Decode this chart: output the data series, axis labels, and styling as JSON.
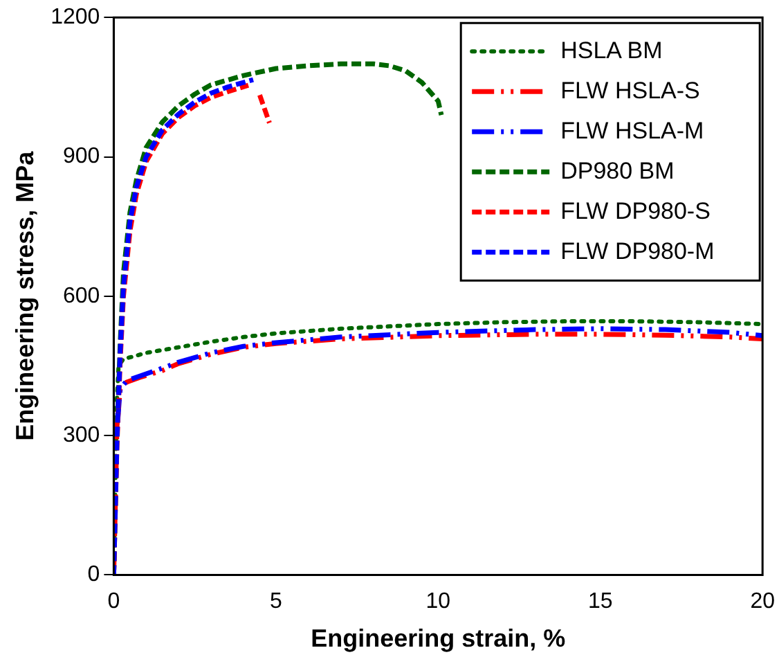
{
  "chart_data": {
    "type": "line",
    "xlabel": "Engineering strain, %",
    "ylabel": "Engineering stress, MPa",
    "xlim": [
      0,
      20
    ],
    "xticks": [
      0,
      5,
      10,
      15,
      20
    ],
    "ylim": [
      0,
      1200
    ],
    "yticks": [
      0,
      300,
      600,
      900,
      1200
    ],
    "grid": false,
    "legend": "top right",
    "marker": "none",
    "series": [
      {
        "name": "HSLA BM",
        "color": "#006600",
        "line_style": "dotted",
        "x": [
          0,
          0.05,
          0.1,
          0.15,
          0.3,
          0.6,
          1,
          2,
          3,
          4,
          5,
          7,
          10,
          12,
          14,
          16,
          18,
          20
        ],
        "values": [
          0,
          200,
          380,
          450,
          465,
          470,
          478,
          490,
          502,
          512,
          520,
          530,
          540,
          544,
          546,
          546,
          544,
          540
        ]
      },
      {
        "name": "FLW HSLA-S",
        "color": "#ff0000",
        "line_style": "dashdot",
        "x": [
          0,
          0.05,
          0.1,
          0.2,
          0.4,
          0.8,
          1.5,
          2,
          3,
          4,
          5,
          7,
          10,
          13,
          15,
          17,
          19,
          20
        ],
        "values": [
          0,
          150,
          320,
          400,
          415,
          425,
          440,
          455,
          475,
          490,
          498,
          508,
          515,
          518,
          518,
          516,
          512,
          508
        ]
      },
      {
        "name": "FLW HSLA-M",
        "color": "#0000ff",
        "line_style": "dashdot",
        "x": [
          0.12,
          0.2,
          0.4,
          0.8,
          1.5,
          2,
          3,
          4,
          5,
          7,
          10,
          13,
          15,
          17,
          19,
          20
        ],
        "values": [
          330,
          400,
          418,
          428,
          445,
          458,
          478,
          492,
          500,
          512,
          522,
          528,
          530,
          528,
          522,
          515
        ]
      },
      {
        "name": "DP980 BM",
        "color": "#006600",
        "line_style": "dashed",
        "x": [
          0,
          0.1,
          0.2,
          0.3,
          0.5,
          0.7,
          1,
          1.5,
          2,
          2.5,
          3,
          4,
          5,
          6,
          7,
          8,
          8.5,
          9,
          9.5,
          10,
          10.1
        ],
        "values": [
          0,
          300,
          500,
          650,
          780,
          850,
          920,
          975,
          1010,
          1035,
          1055,
          1075,
          1090,
          1096,
          1100,
          1100,
          1096,
          1085,
          1060,
          1020,
          990
        ]
      },
      {
        "name": "FLW DP980-S",
        "color": "#ff0000",
        "line_style": "dashed",
        "x": [
          0,
          0.1,
          0.2,
          0.3,
          0.5,
          0.7,
          1,
          1.5,
          2,
          2.5,
          3,
          3.5,
          4.15,
          4.3,
          4.5,
          4.8
        ],
        "values": [
          0,
          280,
          460,
          600,
          740,
          820,
          890,
          950,
          985,
          1010,
          1028,
          1040,
          1054,
          null,
          1033,
          973
        ]
      },
      {
        "name": "FLW DP980-M",
        "color": "#0000ff",
        "line_style": "dashed",
        "x": [
          0,
          0.1,
          0.2,
          0.3,
          0.5,
          0.7,
          1,
          1.5,
          2,
          2.5,
          3,
          3.5,
          4.3
        ],
        "values": [
          0,
          290,
          480,
          620,
          760,
          835,
          900,
          958,
          992,
          1018,
          1037,
          1050,
          1066
        ]
      }
    ]
  }
}
